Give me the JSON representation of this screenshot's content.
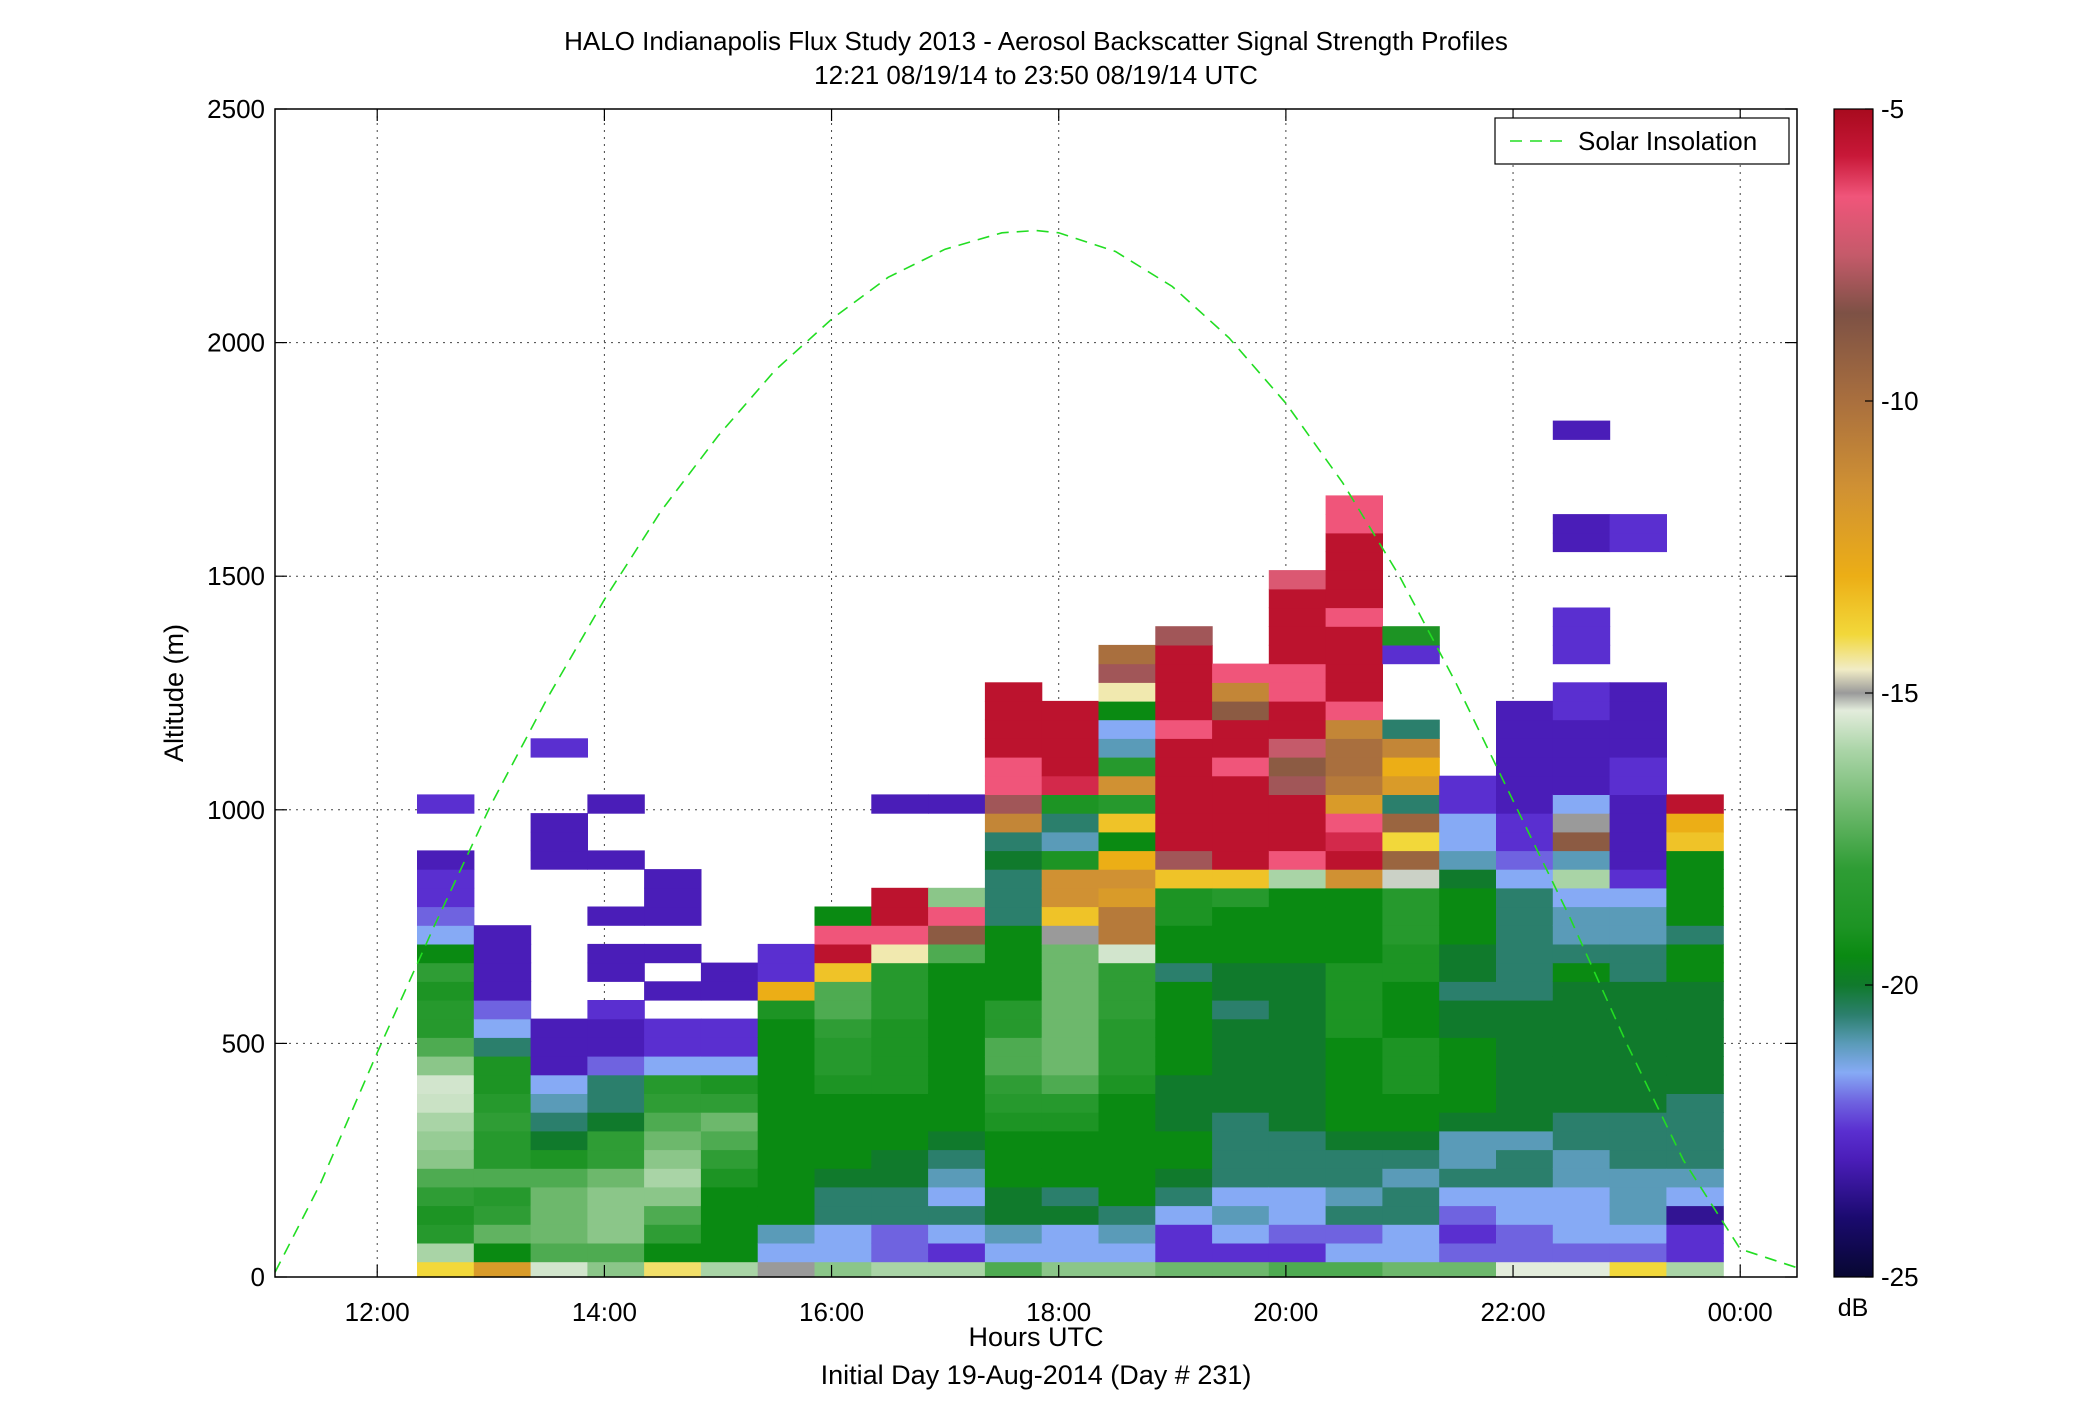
{
  "figure": {
    "title_line1": "HALO Indianapolis Flux Study 2013 - Aerosol Backscatter Signal Strength Profiles",
    "title_line2": "12:21 08/19/14 to 23:50 08/19/14  UTC",
    "footer": "Initial Day 19-Aug-2014 (Day # 231)"
  },
  "chart_data": {
    "type": "heatmap",
    "title": "HALO Indianapolis Flux Study 2013 - Aerosol Backscatter Signal Strength Profiles",
    "subtitle": "12:21 08/19/14 to 23:50 08/19/14  UTC",
    "xlabel": "Hours UTC",
    "ylabel": "Altitude (m)",
    "xlim": [
      11.1,
      24.5
    ],
    "ylim": [
      0,
      2500
    ],
    "x_ticks": [
      12,
      14,
      16,
      18,
      20,
      22,
      24
    ],
    "x_tick_labels": [
      "12:00",
      "14:00",
      "16:00",
      "18:00",
      "20:00",
      "22:00",
      "00:00"
    ],
    "y_ticks": [
      0,
      500,
      1000,
      1500,
      2000,
      2500
    ],
    "y_tick_labels": [
      "0",
      "500",
      "1000",
      "1500",
      "2000",
      "2500"
    ],
    "grid": true,
    "legend_position": "top-right",
    "colorbar": {
      "label": "dB",
      "min": -25,
      "max": -5,
      "ticks": [
        -5,
        -10,
        -15,
        -20,
        -25
      ],
      "tick_labels": [
        "-5",
        "-10",
        "-15",
        "-20",
        "-25"
      ]
    },
    "cell_height_m": 40,
    "first_cell_bottom_m": 33,
    "profiles": [
      {
        "t": 12.6,
        "values": [
          -14,
          -16,
          -18.5,
          -19,
          -18,
          -17.5,
          -16.5,
          -16.3,
          -16,
          -15.6,
          -15.5,
          -16.5,
          -17.5,
          -18.5,
          -18.5,
          -19,
          -18,
          -19.5,
          -21.5,
          -22,
          -22.5,
          -22.5,
          -23,
          null,
          null,
          -22.5
        ]
      },
      {
        "t": 13.1,
        "values": [
          -12,
          -19.5,
          -17.2,
          -18,
          -18.5,
          -17.5,
          -18.5,
          -18.5,
          -18,
          -18.5,
          -19,
          -19,
          -20.5,
          -21.5,
          -22,
          -23,
          -23,
          -23,
          -23,
          null,
          null,
          null,
          null,
          null,
          null,
          null
        ]
      },
      {
        "t": 13.6,
        "values": [
          -15.5,
          -17.5,
          -17,
          -17,
          -17,
          -17.5,
          -19,
          -20,
          -20.5,
          -21,
          -21.5,
          -23,
          -23,
          -23,
          null,
          null,
          null,
          null,
          null,
          null,
          null,
          null,
          -23,
          -23,
          -23,
          null,
          null,
          null,
          -22.5
        ]
      },
      {
        "t": 14.1,
        "values": [
          -16.5,
          -17.5,
          -16.5,
          -16.5,
          -16.5,
          -17,
          -18,
          -18,
          -20,
          -20.5,
          -20.5,
          -22,
          -23,
          -23,
          -22.5,
          null,
          -23,
          -23,
          null,
          -23,
          null,
          null,
          -23,
          null,
          null,
          -23,
          null
        ]
      },
      {
        "t": 14.6,
        "values": [
          -14.2,
          -19.5,
          -18,
          -17.5,
          -16.5,
          -16,
          -16.5,
          -17,
          -17.5,
          -18,
          -18.5,
          -21.5,
          -22.5,
          -22.5,
          null,
          -23,
          null,
          -23,
          null,
          -23,
          -23,
          -23
        ]
      },
      {
        "t": 15.1,
        "values": [
          -16,
          -19.5,
          -19.5,
          -19.5,
          -19.5,
          -19,
          -18,
          -17.5,
          -17,
          -18,
          -19,
          -21.5,
          -22.5,
          -22.5,
          null,
          -23,
          -23
        ]
      },
      {
        "t": 15.6,
        "values": [
          -15,
          -21.5,
          -21,
          -19.5,
          -19.5,
          -19.5,
          -19.5,
          -19.5,
          -19.5,
          -19.5,
          -19.5,
          -19.5,
          -19.5,
          -19.5,
          -19,
          -13,
          -22.5,
          -22.5
        ]
      },
      {
        "t": 16.1,
        "values": [
          -16.5,
          -21.5,
          -21.5,
          -20.5,
          -20.5,
          -20,
          -19.5,
          -19.5,
          -19.5,
          -19.5,
          -19,
          -18.5,
          -18.5,
          -18,
          -17.5,
          -17.5,
          -13.5,
          -5.5,
          -6.5,
          -19.5
        ]
      },
      {
        "t": 16.6,
        "values": [
          -16,
          -22,
          -22,
          -20.5,
          -20.5,
          -20,
          -20,
          -19.5,
          -19.5,
          -19.5,
          -19,
          -19,
          -19,
          -19,
          -18.5,
          -18.5,
          -18.5,
          -14.5,
          -6.5,
          -5.5,
          -5.5,
          null,
          null,
          null,
          null,
          -23
        ]
      },
      {
        "t": 17.1,
        "values": [
          -16,
          -22.5,
          -21.5,
          -20.5,
          -21.5,
          -21,
          -20.5,
          -20,
          -19.5,
          -19.5,
          -19.5,
          -19.5,
          -19.5,
          -19.5,
          -19.5,
          -19.5,
          -19.5,
          -17.5,
          -9,
          -6.5,
          -16.5,
          null,
          null,
          null,
          null,
          -23
        ]
      },
      {
        "t": 17.6,
        "values": [
          -17.5,
          -21.5,
          -21,
          -20,
          -20,
          -19.5,
          -19.5,
          -19.5,
          -19,
          -18.5,
          -18,
          -17.5,
          -17.5,
          -18.5,
          -18.5,
          -19.5,
          -19.5,
          -19.5,
          -19.5,
          -20.5,
          -20.5,
          -20.5,
          -20,
          -20.5,
          -11,
          -8,
          -6.5,
          -6.5,
          -5.5,
          -5.5,
          -5.5,
          -5.5
        ]
      },
      {
        "t": 18.1,
        "values": [
          -16.5,
          -21.5,
          -21.5,
          -20,
          -20.5,
          -19.5,
          -19.5,
          -19.5,
          -19,
          -18.5,
          -17.5,
          -17,
          -17,
          -17,
          -17,
          -17,
          -17,
          -17,
          -15,
          -13.5,
          -11.5,
          -11.5,
          -19,
          -21,
          -20.5,
          -19,
          -6,
          -5.5,
          -5.5,
          -5.5,
          -5.5
        ]
      },
      {
        "t": 18.6,
        "values": [
          -16.5,
          -21.5,
          -21,
          -20.5,
          -19.5,
          -19.5,
          -19.5,
          -19.5,
          -19.5,
          -19.5,
          -19,
          -18.5,
          -18.5,
          -18.5,
          -18,
          -18,
          -18,
          -15.5,
          -10.5,
          -10.5,
          -12,
          -11.5,
          -13,
          -19.5,
          -13.5,
          -18.5,
          -11.5,
          -18.5,
          -21,
          -21.5,
          -19.5,
          -14.5,
          -8,
          -10
        ]
      },
      {
        "t": 19.1,
        "values": [
          -17,
          -22.5,
          -22.5,
          -21.5,
          -20.5,
          -20,
          -19.5,
          -19.5,
          -20,
          -20,
          -20,
          -19.5,
          -19.5,
          -19.5,
          -19.5,
          -19.5,
          -20.5,
          -19.5,
          -19.5,
          -19,
          -19,
          -13.5,
          -8,
          -5.5,
          -5.5,
          -5.5,
          -5.5,
          -5.5,
          -5.5,
          -6.5,
          -5.5,
          -5.5,
          -5.5,
          -5.5,
          -8
        ]
      },
      {
        "t": 19.6,
        "values": [
          -17,
          -22.5,
          -21.5,
          -21,
          -21.5,
          -20.5,
          -20.5,
          -20.5,
          -20.5,
          -20,
          -20,
          -20,
          -20,
          -20,
          -20.5,
          -20,
          -20,
          -19.5,
          -19.5,
          -19.5,
          -18.5,
          -13.5,
          -5.5,
          -5.5,
          -5.5,
          -5.5,
          -5.5,
          -6.5,
          -5.5,
          -5.5,
          -9,
          -11,
          -6.5
        ]
      },
      {
        "t": 20.1,
        "values": [
          -17.5,
          -22.5,
          -22,
          -21.5,
          -21.5,
          -20.5,
          -20.5,
          -20.5,
          -20,
          -20,
          -20,
          -20,
          -20,
          -20,
          -20,
          -20,
          -20,
          -19.5,
          -19.5,
          -19.5,
          -19.5,
          -16,
          -6.5,
          -5.5,
          -5.5,
          -5.5,
          -8,
          -9,
          -7.5,
          -5.5,
          -5.5,
          -6.5,
          -6.5,
          -5.5,
          -5.5,
          -5.5,
          -5.5,
          -7
        ]
      },
      {
        "t": 20.6,
        "values": [
          -17.5,
          -21.5,
          -22,
          -20.5,
          -21,
          -20.5,
          -20.5,
          -20,
          -19.5,
          -19.5,
          -19.5,
          -19.5,
          -19.5,
          -19,
          -19,
          -19,
          -19,
          -19.5,
          -19.5,
          -19.5,
          -19.5,
          -11.5,
          -5.5,
          -6,
          -6.5,
          -12,
          -10.5,
          -10,
          -10,
          -11,
          -6.5,
          -5.5,
          -5.5,
          -5.5,
          -5.5,
          -6.5,
          -5.5,
          -5.5,
          -5.5,
          -5.5,
          -6.5,
          -6.5
        ]
      },
      {
        "t": 21.1,
        "values": [
          -17,
          -21.5,
          -21.5,
          -20.5,
          -20.5,
          -21,
          -20.5,
          -20,
          -19.5,
          -19.5,
          -19,
          -19,
          -19,
          -19.5,
          -19.5,
          -19.5,
          -19,
          -19,
          -18.5,
          -18.5,
          -18.5,
          -15.2,
          -9.5,
          -14,
          -9.5,
          -20.5,
          -12,
          -13,
          -11,
          -20.5,
          null,
          null,
          null,
          -22.5,
          -19
        ]
      },
      {
        "t": 21.6,
        "values": [
          -17,
          -22,
          -22.5,
          -22,
          -21.5,
          -20.5,
          -21,
          -21,
          -20,
          -19.5,
          -19.5,
          -19.5,
          -19.5,
          -20,
          -20,
          -20.5,
          -20,
          -20,
          -19.5,
          -19.5,
          -19.5,
          -20,
          -21,
          -21.5,
          -21.5,
          -22.5,
          -22.5
        ]
      },
      {
        "t": 22.1,
        "values": [
          -15.3,
          -22,
          -22,
          -21.5,
          -21.5,
          -20.5,
          -20.5,
          -21,
          -20,
          -20,
          -20,
          -20,
          -20,
          -20,
          -20,
          -20.5,
          -20.5,
          -20.5,
          -20.5,
          -20.5,
          -20.5,
          -21.5,
          -22,
          -22.5,
          -22.5,
          -23,
          -23,
          -23,
          -23,
          -23,
          -23
        ]
      },
      {
        "t": 22.6,
        "values": [
          -15.3,
          -22,
          -21.5,
          -21.5,
          -21.5,
          -21,
          -21,
          -20.5,
          -20.5,
          -20,
          -20,
          -20,
          -20,
          -20,
          -20,
          -20,
          -19.5,
          -20.5,
          -21,
          -21,
          -21.5,
          -16,
          -21,
          -9,
          -15,
          -21.5,
          -23,
          -23,
          -23,
          -23,
          -22.5,
          -22.5,
          null,
          -22.5,
          -22.5,
          -22.5,
          null,
          null,
          null,
          -23,
          -23,
          null,
          null,
          null,
          null,
          -23
        ]
      },
      {
        "t": 23.1,
        "values": [
          -14,
          -22,
          -21.5,
          -21,
          -21,
          -21,
          -20.5,
          -20.5,
          -20.5,
          -20,
          -20,
          -20,
          -20,
          -20,
          -20,
          -20,
          -20.5,
          -20.5,
          -21,
          -21,
          -21.5,
          -22.5,
          -23,
          -23,
          -23,
          -23,
          -22.5,
          -22.5,
          -23,
          -23,
          -23,
          -23,
          null,
          null,
          null,
          null,
          null,
          null,
          null,
          -22.5,
          -22.5
        ]
      },
      {
        "t": 23.6,
        "values": [
          -16,
          -22.5,
          -22.5,
          -23.5,
          -21.5,
          -21,
          -20.5,
          -20.5,
          -20.5,
          -20.5,
          -20,
          -20,
          -20,
          -20,
          -20,
          -20,
          -19.5,
          -19.5,
          -20.5,
          -19.5,
          -19.5,
          -19.5,
          -19.5,
          -13.5,
          -13,
          -5.5
        ]
      }
    ],
    "series": [
      {
        "name": "Solar Insolation",
        "style": "dashed",
        "color": "#22dd22",
        "x": [
          11.1,
          11.5,
          12.0,
          12.5,
          13.0,
          13.5,
          14.0,
          14.5,
          15.0,
          15.5,
          16.0,
          16.5,
          17.0,
          17.5,
          17.8,
          18.0,
          18.5,
          19.0,
          19.5,
          20.0,
          20.5,
          21.0,
          21.5,
          22.0,
          22.5,
          23.0,
          23.5,
          24.0,
          24.5
        ],
        "y": [
          10,
          200,
          480,
          750,
          1010,
          1240,
          1450,
          1640,
          1800,
          1940,
          2050,
          2140,
          2200,
          2235,
          2240,
          2235,
          2195,
          2120,
          2010,
          1870,
          1700,
          1500,
          1270,
          1020,
          770,
          500,
          250,
          60,
          20
        ]
      }
    ]
  }
}
